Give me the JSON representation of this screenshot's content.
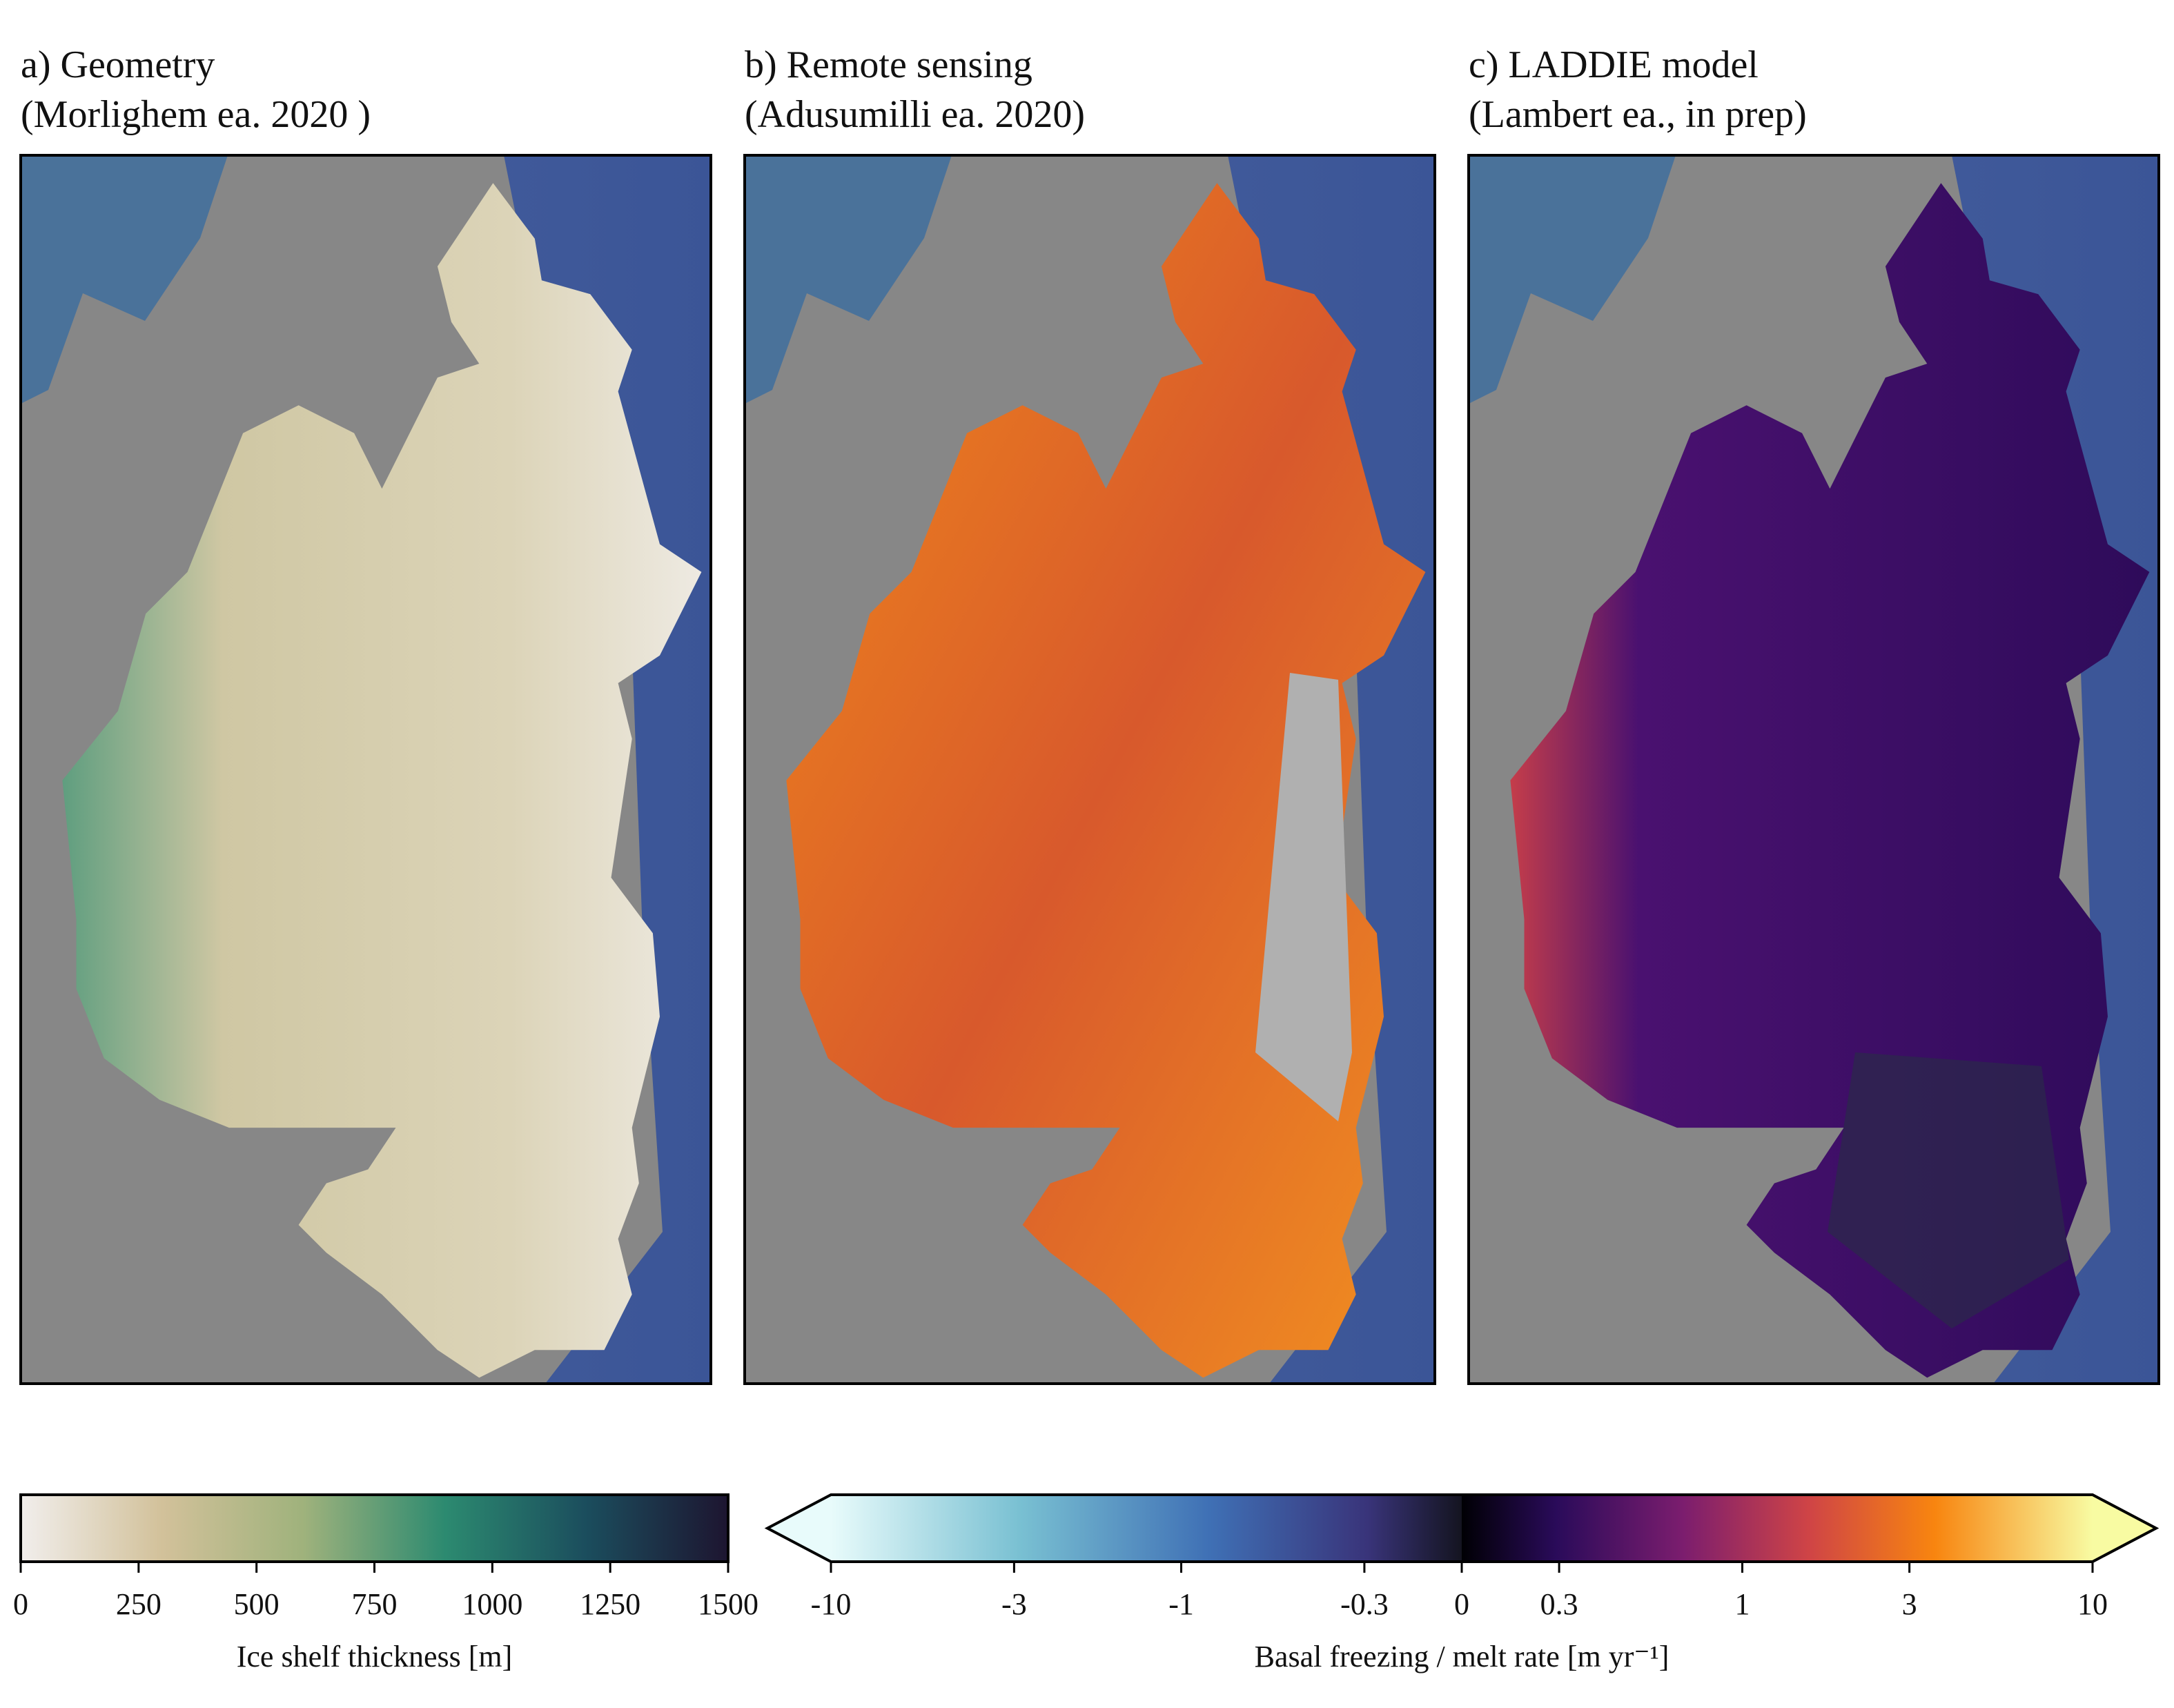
{
  "panels": [
    {
      "title": "a) Geometry",
      "subtitle": "(Morlighem ea. 2020 )"
    },
    {
      "title": "b) Remote sensing",
      "subtitle": "(Adusumilli ea. 2020)"
    },
    {
      "title": "c) LADDIE model",
      "subtitle": "(Lambert ea., in prep)"
    }
  ],
  "colorbars": [
    {
      "label": "Ice shelf thickness [m]",
      "lim": [
        0,
        1500
      ],
      "ticks": [
        0,
        250,
        500,
        750,
        1000,
        1250,
        1500
      ]
    },
    {
      "label": "Basal freezing / melt rate [m yr⁻¹]",
      "lim": [
        -10,
        10
      ],
      "scale": "symlog",
      "extend": "both",
      "ticks": [
        -10,
        -3,
        -1,
        -0.3,
        0,
        0.3,
        1,
        3,
        10
      ]
    }
  ]
}
